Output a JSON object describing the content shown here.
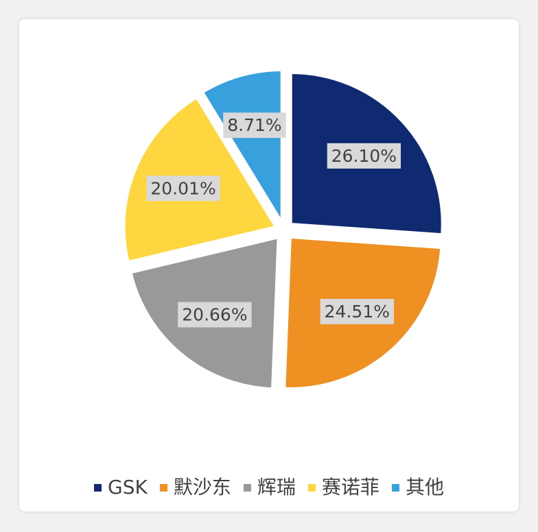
{
  "chart_data": {
    "type": "pie",
    "title": "",
    "slices": [
      {
        "name": "GSK",
        "value": 26.1,
        "label": "26.10%",
        "color": "#102a72"
      },
      {
        "name": "默沙东",
        "value": 24.51,
        "label": "24.51%",
        "color": "#ee9122"
      },
      {
        "name": "辉瑞",
        "value": 20.66,
        "label": "20.66%",
        "color": "#999999"
      },
      {
        "name": "赛诺菲",
        "value": 20.01,
        "label": "20.01%",
        "color": "#fed740"
      },
      {
        "name": "其他",
        "value": 8.71,
        "label": "8.71%",
        "color": "#38a0dd"
      }
    ],
    "start": "12 o'clock",
    "direction": "clockwise",
    "exploded": true,
    "data_labels": true,
    "legend_position": "bottom"
  }
}
